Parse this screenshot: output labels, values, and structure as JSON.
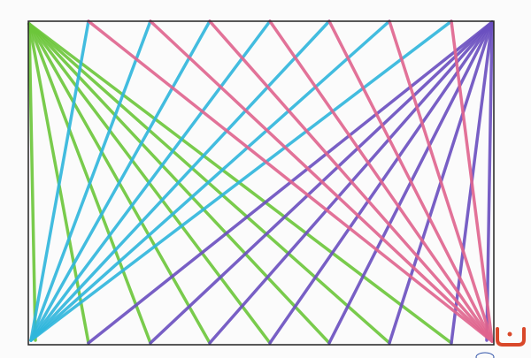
{
  "artwork": {
    "colors": {
      "paper": "#fbfbfb",
      "frame": "#222222",
      "green": "#6cc63a",
      "cyan": "#2fb6dc",
      "purple": "#6a4fc0",
      "pink": "#e0648e",
      "logo": "#d9482a"
    }
  }
}
